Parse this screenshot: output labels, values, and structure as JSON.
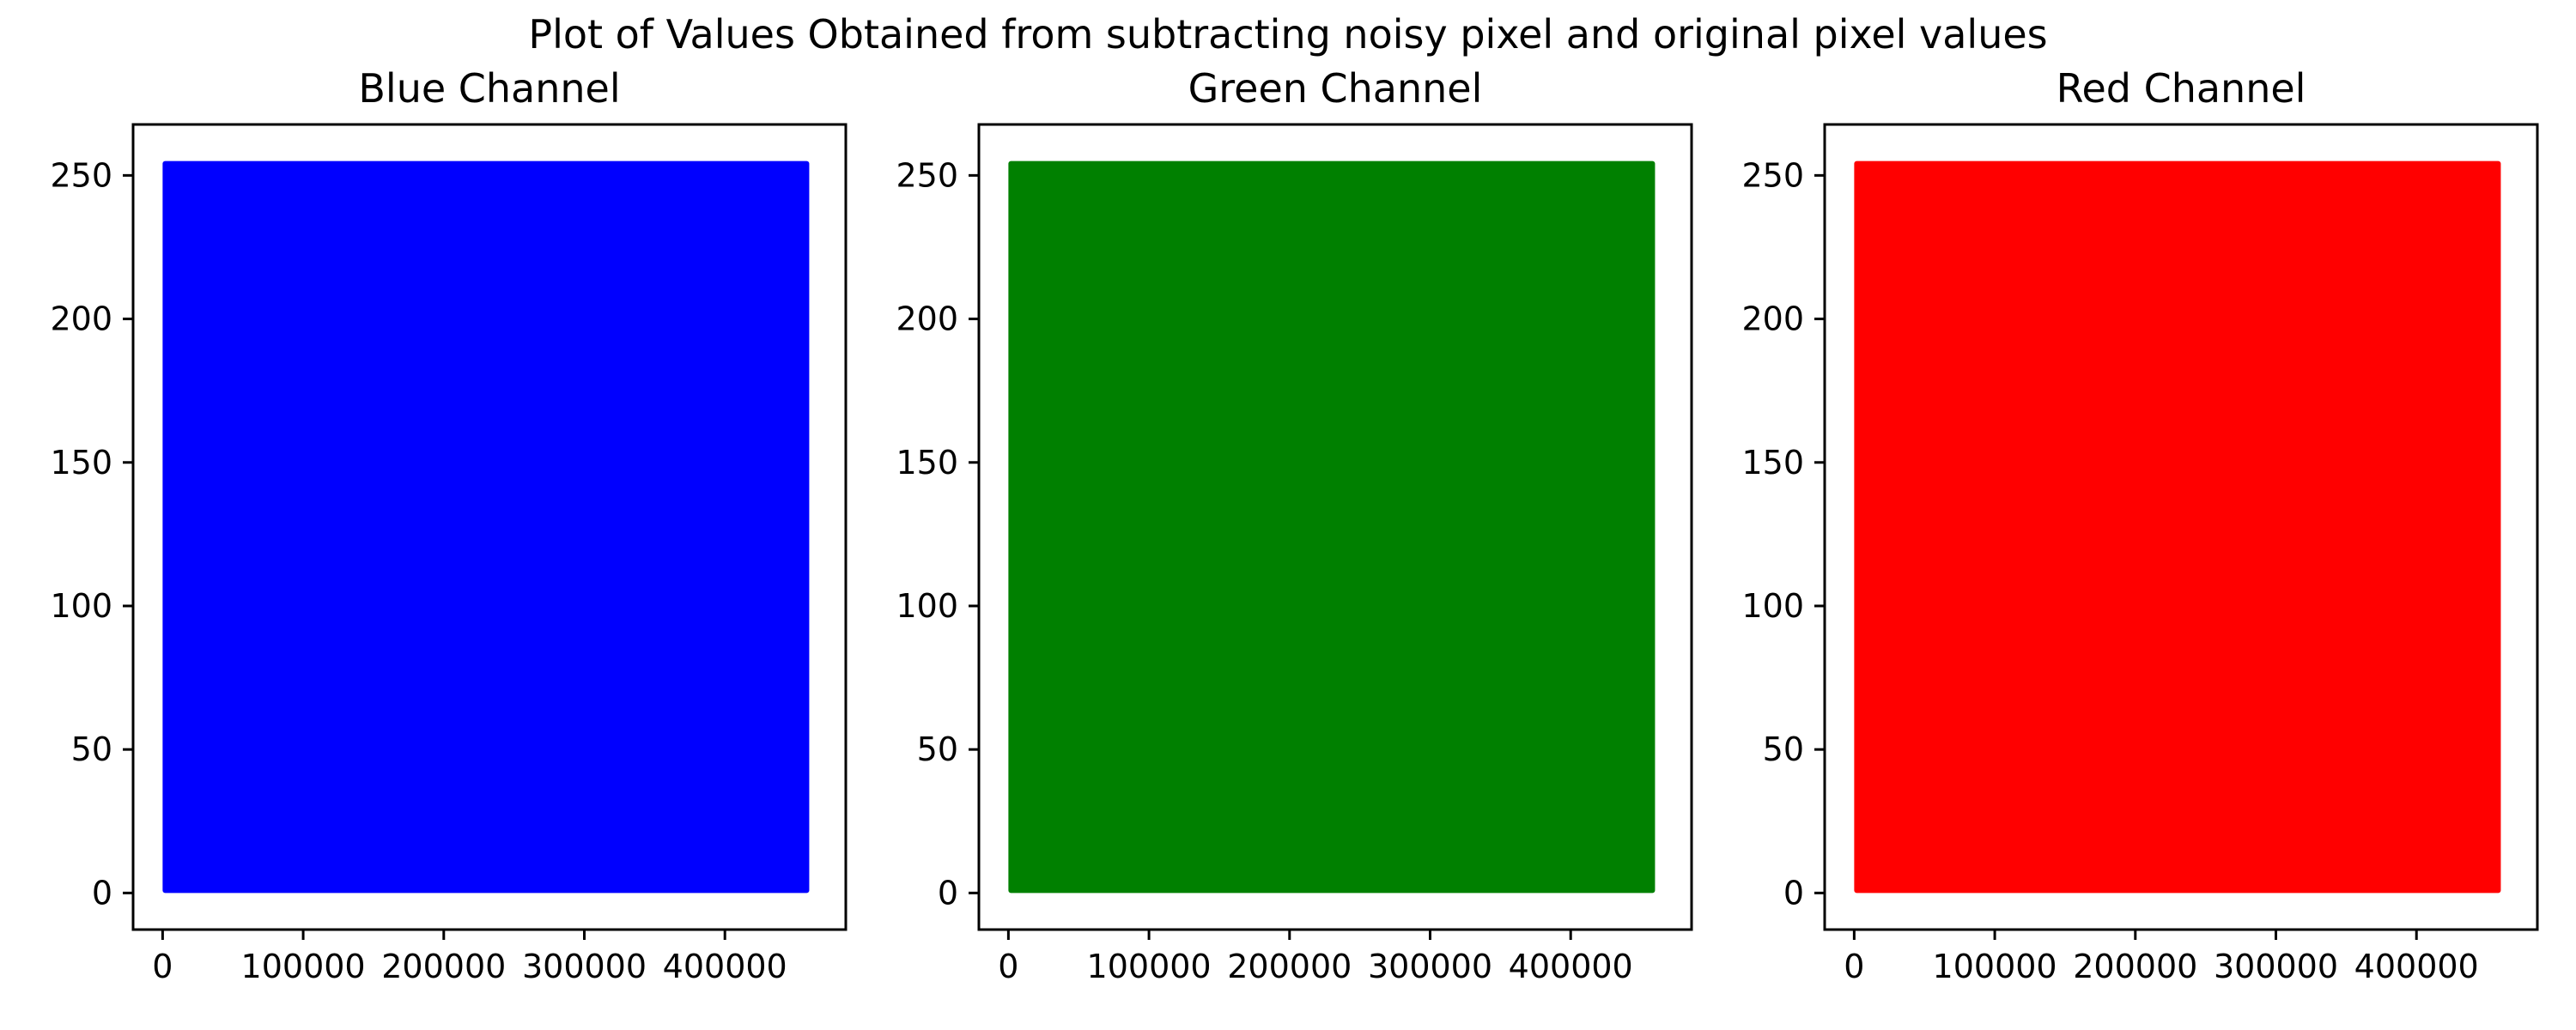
{
  "figure": {
    "title": "Plot of Values Obtained from subtracting noisy pixel and original pixel values"
  },
  "chart_data": [
    {
      "type": "line",
      "title": "Blue Channel",
      "xlabel": "",
      "ylabel": "",
      "color": "#0000ff",
      "xlim": [
        -21000,
        486000
      ],
      "ylim": [
        -12.75,
        267.75
      ],
      "xticks": [
        0,
        100000,
        200000,
        300000,
        400000
      ],
      "xtick_labels": [
        "0",
        "100000",
        "200000",
        "300000",
        "400000"
      ],
      "yticks": [
        0,
        50,
        100,
        150,
        200,
        250
      ],
      "ytick_labels": [
        "0",
        "50",
        "100",
        "150",
        "200",
        "250"
      ],
      "grid": false,
      "series": [
        {
          "x_range": [
            0,
            460000
          ],
          "y_range": [
            0,
            255
          ]
        }
      ]
    },
    {
      "type": "line",
      "title": "Green Channel",
      "xlabel": "",
      "ylabel": "",
      "color": "#008000",
      "xlim": [
        -21000,
        486000
      ],
      "ylim": [
        -12.75,
        267.75
      ],
      "xticks": [
        0,
        100000,
        200000,
        300000,
        400000
      ],
      "xtick_labels": [
        "0",
        "100000",
        "200000",
        "300000",
        "400000"
      ],
      "yticks": [
        0,
        50,
        100,
        150,
        200,
        250
      ],
      "ytick_labels": [
        "0",
        "50",
        "100",
        "150",
        "200",
        "250"
      ],
      "grid": false,
      "series": [
        {
          "x_range": [
            0,
            460000
          ],
          "y_range": [
            0,
            255
          ]
        }
      ]
    },
    {
      "type": "line",
      "title": "Red Channel",
      "xlabel": "",
      "ylabel": "",
      "color": "#ff0000",
      "xlim": [
        -21000,
        486000
      ],
      "ylim": [
        -12.75,
        267.75
      ],
      "xticks": [
        0,
        100000,
        200000,
        300000,
        400000
      ],
      "xtick_labels": [
        "0",
        "100000",
        "200000",
        "300000",
        "400000"
      ],
      "yticks": [
        0,
        50,
        100,
        150,
        200,
        250
      ],
      "ytick_labels": [
        "0",
        "50",
        "100",
        "150",
        "200",
        "250"
      ],
      "grid": false,
      "series": [
        {
          "x_range": [
            0,
            460000
          ],
          "y_range": [
            0,
            255
          ]
        }
      ]
    }
  ]
}
